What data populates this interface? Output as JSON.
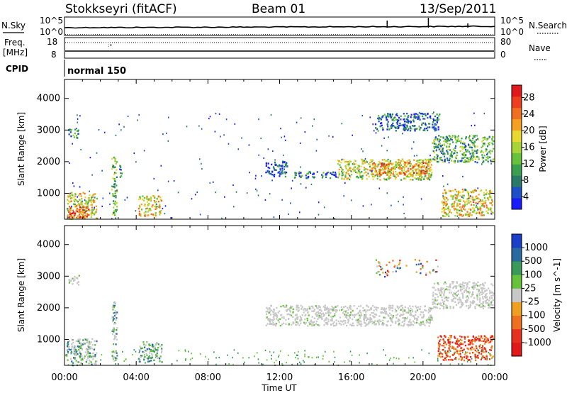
{
  "header": {
    "station": "Stokkseyri (fitACF)",
    "beam": "Beam 01",
    "date": "13/Sep/2011"
  },
  "top_panels": {
    "nsky_label": "N.Sky",
    "nsearch_label": "N.Search",
    "noise_tick_top": "10^5",
    "noise_tick_bottom": "10^0",
    "freq_label_line1": "Freq.",
    "freq_label_line2": "[MHz]",
    "freq_tick_top": "18",
    "freq_tick_bottom": "8",
    "nave_label": "Nave",
    "nave_tick_top": "80",
    "nave_tick_bottom": "0",
    "cpid_label": "CPID",
    "cpid_value": "normal 150"
  },
  "chart_data": [
    {
      "type": "heatmap",
      "panel": "power",
      "ylabel": "Slant Range [km]",
      "xlabel": "",
      "ylim": [
        180,
        4600
      ],
      "yticks": [
        1000,
        2000,
        3000,
        4000
      ],
      "xlim_hours": [
        0,
        24
      ],
      "xtick_labels": [
        "00:00",
        "04:00",
        "08:00",
        "12:00",
        "16:00",
        "20:00",
        "00:00"
      ],
      "colorbar": {
        "label": "Power [dB]",
        "ticks": [
          4,
          8,
          12,
          16,
          20,
          24,
          28
        ],
        "colors": [
          "#1a1aff",
          "#1e50c8",
          "#2a7a6a",
          "#3aa050",
          "#66c23a",
          "#a8d43a",
          "#e8d830",
          "#f5a020",
          "#f07020",
          "#ee4020",
          "#e01a1a"
        ]
      },
      "regions": [
        {
          "t0": 0.1,
          "t1": 1.8,
          "r0": 200,
          "r1": 1050,
          "level": 0.55
        },
        {
          "t0": 0.2,
          "t1": 1.4,
          "r0": 250,
          "r1": 600,
          "level": 0.85
        },
        {
          "t0": 0.2,
          "t1": 0.8,
          "r0": 2750,
          "r1": 3050,
          "level": 0.3
        },
        {
          "t0": 2.6,
          "t1": 2.9,
          "r0": 300,
          "r1": 2200,
          "level": 0.4
        },
        {
          "t0": 3.0,
          "t1": 3.2,
          "r0": 1500,
          "r1": 1900,
          "level": 0.2
        },
        {
          "t0": 4.1,
          "t1": 5.4,
          "r0": 300,
          "r1": 950,
          "level": 0.6
        },
        {
          "t0": 11.2,
          "t1": 12.4,
          "r0": 1550,
          "r1": 2050,
          "level": 0.15
        },
        {
          "t0": 12.8,
          "t1": 15.2,
          "r0": 1500,
          "r1": 1700,
          "level": 0.2
        },
        {
          "t0": 15.2,
          "t1": 20.5,
          "r0": 1450,
          "r1": 2100,
          "level": 0.5
        },
        {
          "t0": 17.0,
          "t1": 20.3,
          "r0": 1600,
          "r1": 2000,
          "level": 0.75
        },
        {
          "t0": 20.5,
          "t1": 23.9,
          "r0": 2000,
          "r1": 2850,
          "level": 0.35
        },
        {
          "t0": 21.0,
          "t1": 23.9,
          "r0": 300,
          "r1": 1150,
          "level": 0.6
        },
        {
          "t0": 17.3,
          "t1": 20.9,
          "r0": 3000,
          "r1": 3550,
          "level": 0.2
        }
      ]
    },
    {
      "type": "heatmap",
      "panel": "velocity",
      "ylabel": "Slant Range [km]",
      "xlabel": "Time UT",
      "ylim": [
        180,
        4600
      ],
      "yticks": [
        1000,
        2000,
        3000,
        4000
      ],
      "xlim_hours": [
        0,
        24
      ],
      "xtick_labels": [
        "00:00",
        "04:00",
        "08:00",
        "12:00",
        "16:00",
        "20:00",
        "00:00"
      ],
      "colorbar": {
        "label": "Velocity [m s^-1]",
        "ticks": [
          1000,
          500,
          100,
          25,
          -25,
          -100,
          -500,
          -1000
        ],
        "colors": [
          "#1a3fc8",
          "#2a6aa0",
          "#3a9a5a",
          "#66c23a",
          "#c8c8c8",
          "#f0a020",
          "#f07020",
          "#e83020",
          "#e01a1a"
        ]
      },
      "regions": [
        {
          "t0": 0.1,
          "t1": 1.8,
          "r0": 200,
          "r1": 1050,
          "kind": "mixed"
        },
        {
          "t0": 0.2,
          "t1": 0.8,
          "r0": 2750,
          "r1": 3050,
          "kind": "ground"
        },
        {
          "t0": 2.6,
          "t1": 2.9,
          "r0": 300,
          "r1": 2200,
          "kind": "mixed"
        },
        {
          "t0": 4.1,
          "t1": 5.4,
          "r0": 300,
          "r1": 950,
          "kind": "mixed"
        },
        {
          "t0": 11.2,
          "t1": 20.5,
          "r0": 1450,
          "r1": 2100,
          "kind": "ground"
        },
        {
          "t0": 20.5,
          "t1": 23.9,
          "r0": 2000,
          "r1": 2850,
          "kind": "ground"
        },
        {
          "t0": 20.8,
          "t1": 23.9,
          "r0": 350,
          "r1": 1150,
          "kind": "negative"
        },
        {
          "t0": 17.3,
          "t1": 20.9,
          "r0": 3000,
          "r1": 3550,
          "kind": "sparse"
        }
      ]
    }
  ]
}
